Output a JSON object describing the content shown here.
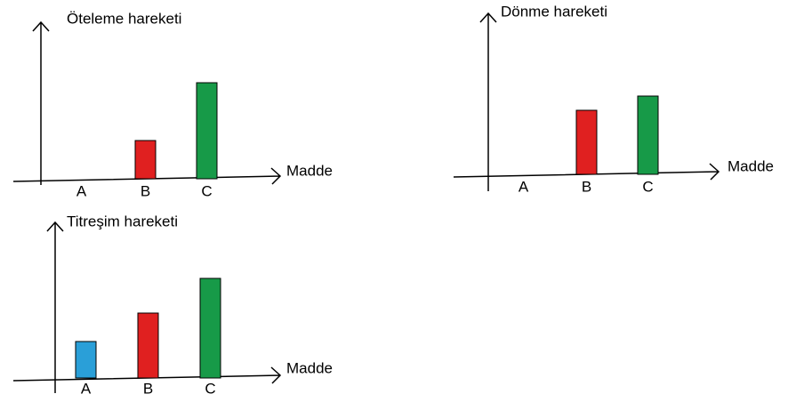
{
  "chart_data": [
    {
      "type": "bar",
      "title": "Öteleme hareketi",
      "x_label": "Madde",
      "categories": [
        "A",
        "B",
        "C"
      ],
      "values": [
        0,
        43,
        108
      ],
      "colors": [
        "#e02020",
        "#e02020",
        "#179a48"
      ]
    },
    {
      "type": "bar",
      "title": "Dönme hareketi",
      "x_label": "Madde",
      "categories": [
        "A",
        "B",
        "C"
      ],
      "values": [
        0,
        72,
        88
      ],
      "colors": [
        "#e02020",
        "#e02020",
        "#179a48"
      ]
    },
    {
      "type": "bar",
      "title": "Titreşim hareketi",
      "x_label": "Madde",
      "categories": [
        "A",
        "B",
        "C"
      ],
      "values": [
        41,
        73,
        112
      ],
      "colors": [
        "#2a9fd8",
        "#e02020",
        "#179a48"
      ]
    }
  ]
}
